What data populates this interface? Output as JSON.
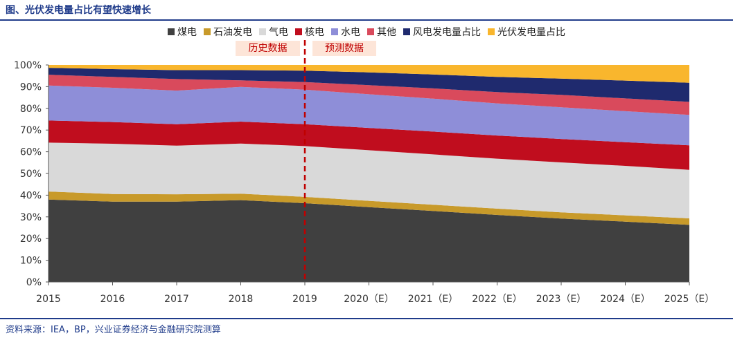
{
  "header": {
    "title": "图、光伏发电量占比有望快速增长"
  },
  "footer": {
    "source": "资料来源：IEA，BP，兴业证券经济与金融研究院测算"
  },
  "annotations": {
    "historical": "历史数据",
    "forecast": "预测数据"
  },
  "chart_data": {
    "type": "area",
    "stacked": true,
    "normalized": true,
    "categories": [
      "2015",
      "2016",
      "2017",
      "2018",
      "2019",
      "2020（E）",
      "2021（E）",
      "2022（E）",
      "2023（E）",
      "2024（E）",
      "2025（E）"
    ],
    "ylim": [
      0,
      100
    ],
    "yticks": [
      "0%",
      "10%",
      "20%",
      "30%",
      "40%",
      "50%",
      "60%",
      "70%",
      "80%",
      "90%",
      "100%"
    ],
    "divider_after": "2019",
    "legend_position": "top",
    "series": [
      {
        "name": "煤电",
        "color": "#404040",
        "values": [
          38,
          37,
          37,
          37.7,
          36.3,
          34.5,
          32.7,
          30.9,
          29.2,
          27.8,
          26.3
        ]
      },
      {
        "name": "石油发电",
        "color": "#c89a2a",
        "values": [
          3.7,
          3.5,
          3.4,
          3.0,
          2.9,
          2.9,
          2.9,
          2.9,
          2.9,
          2.9,
          3.0
        ]
      },
      {
        "name": "气电",
        "color": "#d9d9d9",
        "values": [
          22.5,
          23.2,
          22.4,
          23.1,
          23.4,
          23.3,
          23.2,
          23.0,
          23.0,
          22.8,
          22.4
        ]
      },
      {
        "name": "核电",
        "color": "#c00d1e",
        "values": [
          10.2,
          10,
          9.9,
          10.1,
          10.1,
          10.3,
          10.5,
          10.7,
          10.8,
          10.9,
          11.3
        ]
      },
      {
        "name": "水电",
        "color": "#8e8ed8",
        "values": [
          16.1,
          15.8,
          15.5,
          16.0,
          15.9,
          15.5,
          15.2,
          14.8,
          14.6,
          14.3,
          14.0
        ]
      },
      {
        "name": "其他",
        "color": "#d94a5c",
        "values": [
          5,
          5,
          5.3,
          3.0,
          3.5,
          4.2,
          4.7,
          5.2,
          5.7,
          5.9,
          6.0
        ]
      },
      {
        "name": "风电发电量占比",
        "color": "#1f2a6e",
        "values": [
          3.2,
          3.6,
          4.1,
          4.7,
          5.3,
          5.9,
          6.4,
          7.0,
          7.5,
          8.2,
          8.8
        ]
      },
      {
        "name": "光伏发电量占比",
        "color": "#f9b62d",
        "values": [
          1.3,
          1.9,
          2.4,
          2.4,
          2.6,
          3.4,
          4.4,
          5.5,
          6.3,
          7.2,
          8.2
        ]
      }
    ]
  }
}
